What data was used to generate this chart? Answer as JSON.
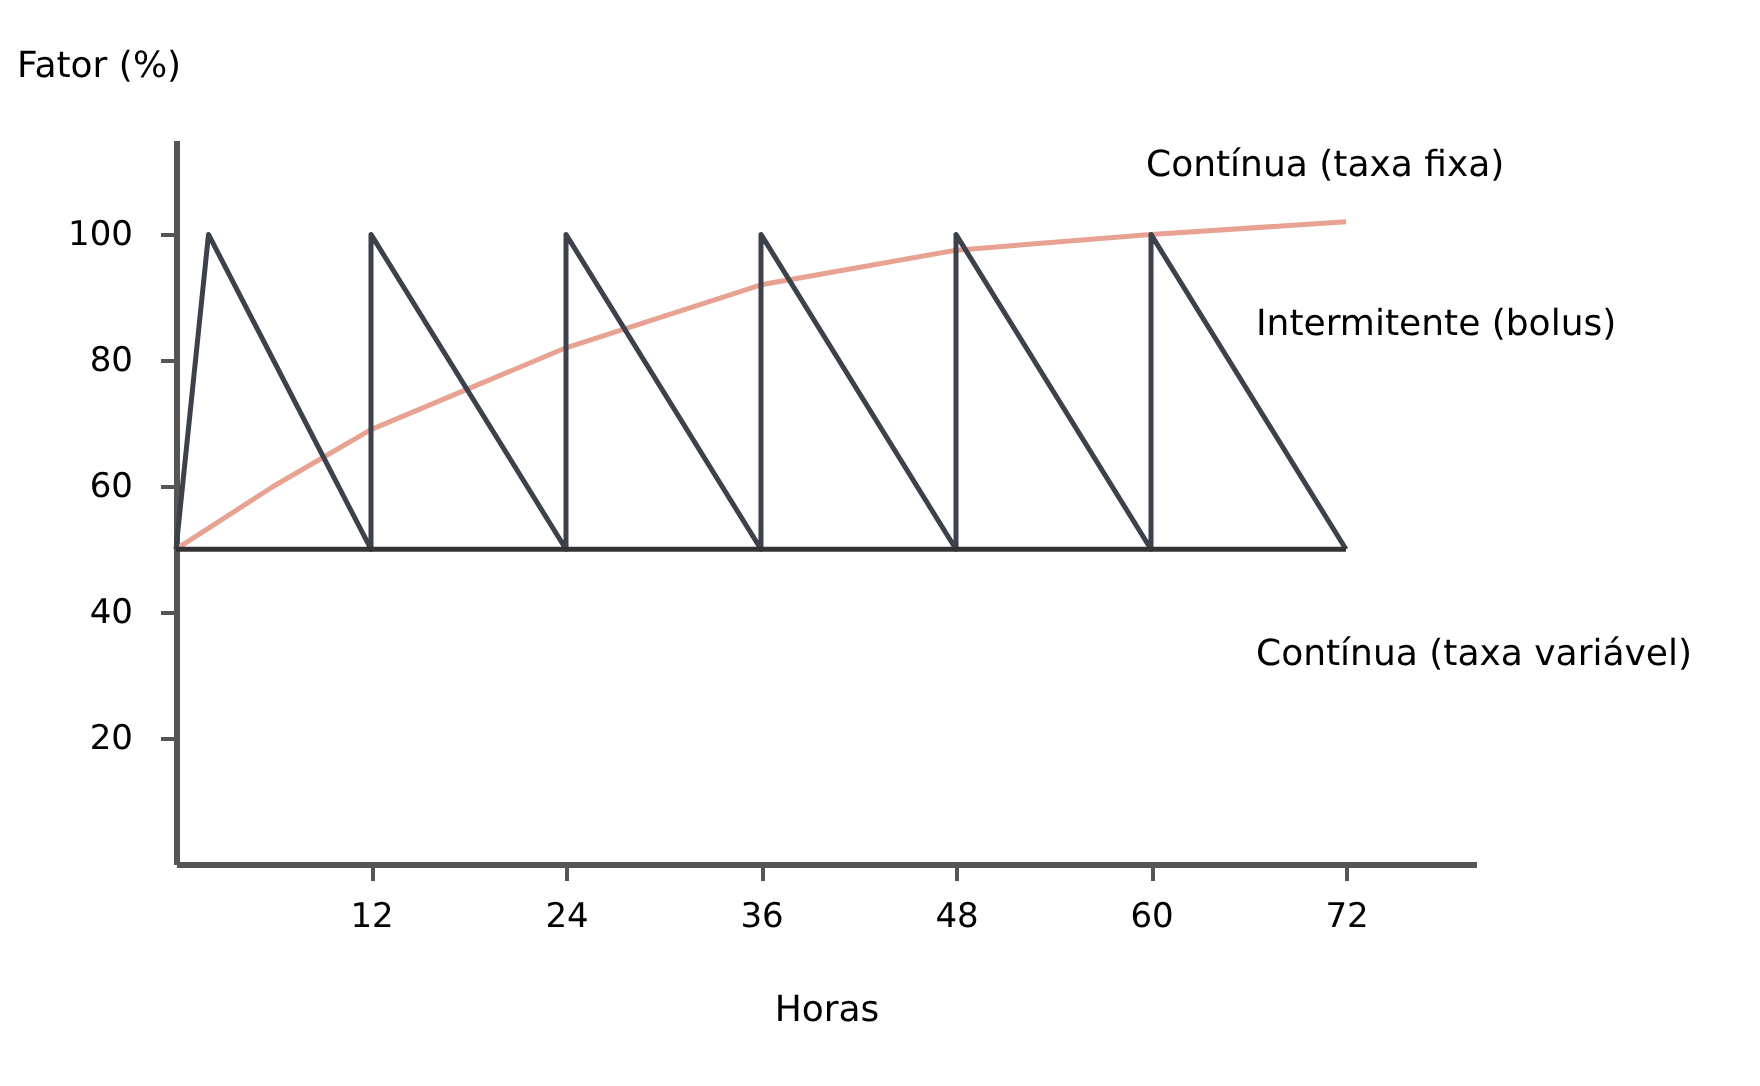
{
  "chart_data": {
    "type": "line",
    "xlabel": "Horas",
    "ylabel": "Fator (%)",
    "xlim": [
      0,
      80
    ],
    "ylim": [
      0,
      115
    ],
    "xticks": [
      12,
      24,
      36,
      48,
      60,
      72
    ],
    "yticks": [
      20,
      40,
      60,
      80,
      100
    ],
    "marker": "none",
    "line_style": "solid",
    "series": [
      {
        "name": "Contínua (taxa fixa)",
        "color": "#e8a292",
        "x": [
          0,
          6,
          12,
          24,
          36,
          48,
          60,
          72
        ],
        "values": [
          50,
          60,
          69,
          82,
          92,
          97.5,
          100,
          102
        ]
      },
      {
        "name": "Intermitente (bolus)",
        "color": "#3c414c",
        "x": [
          0,
          2,
          12,
          12,
          24,
          24,
          36,
          36,
          48,
          48,
          60,
          60,
          72
        ],
        "values": [
          50,
          100,
          50,
          100,
          50,
          100,
          50,
          100,
          50,
          100,
          50,
          100,
          50
        ]
      },
      {
        "name": "Contínua (taxa variável)",
        "color": "#333333",
        "x": [
          0,
          72
        ],
        "values": [
          50,
          50
        ]
      }
    ]
  }
}
